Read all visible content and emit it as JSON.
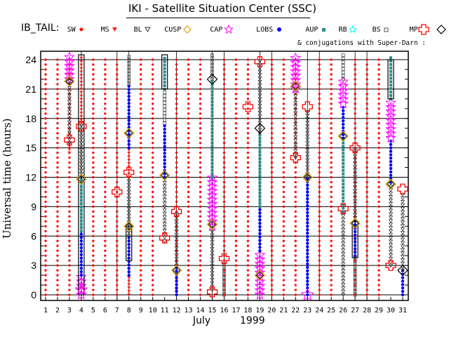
{
  "title": "IKI - Satellite Situation Center (SSC)",
  "legend": {
    "label": "IB_TAIL:",
    "items": [
      {
        "code": "SW",
        "name": "SW",
        "color": "#ff0000",
        "marker": "dot-red"
      },
      {
        "code": "MS",
        "name": "MS",
        "color": "#ff2020",
        "marker": "triangle-down"
      },
      {
        "code": "BL",
        "name": "BL",
        "color": "#303030",
        "marker": "triangle-down-open"
      },
      {
        "code": "CUSP",
        "name": "CUSP",
        "color": "#e0a000",
        "marker": "diamond-yellow"
      },
      {
        "code": "CAP",
        "name": "CAP",
        "color": "#ff00ff",
        "marker": "star-magenta"
      },
      {
        "code": "LOBS",
        "name": "LOBS",
        "color": "#0000ff",
        "marker": "dot-blue"
      },
      {
        "code": "AUP",
        "name": "AUP",
        "color": "#2e8b8b",
        "marker": "square-teal"
      },
      {
        "code": "RB",
        "name": "RB",
        "color": "#00ffff",
        "marker": "star-cyan"
      },
      {
        "code": "BS",
        "name": "BS",
        "color": "#505050",
        "marker": "square-open"
      },
      {
        "code": "MP",
        "name": "MP",
        "color": "#ff0000",
        "marker": "cross-red"
      }
    ],
    "conj_marker": "diamond-open",
    "conj_note": "& conjugations with Super-Darn :"
  },
  "chart_data": {
    "type": "scatter",
    "title": "IKI - Satellite Situation Center (SSC)",
    "xlabel_month": "July",
    "xlabel_year": "1999",
    "ylabel": "Universal time (hours)",
    "xlim": [
      1,
      31
    ],
    "ylim": [
      0,
      24
    ],
    "x_ticks": [
      1,
      2,
      3,
      4,
      5,
      6,
      7,
      8,
      9,
      10,
      11,
      12,
      13,
      14,
      15,
      16,
      17,
      18,
      19,
      20,
      21,
      22,
      23,
      24,
      25,
      26,
      27,
      28,
      29,
      30,
      31
    ],
    "y_ticks": [
      0,
      3,
      6,
      9,
      12,
      15,
      18,
      21,
      24
    ],
    "grid": true,
    "solar_wind_days": [
      1,
      2,
      3,
      5,
      6,
      7,
      9,
      10,
      12,
      13,
      14,
      16,
      17,
      18,
      20,
      21,
      22,
      24,
      25,
      27,
      28,
      29
    ],
    "columns": [
      {
        "day": 3,
        "segments": [
          [
            14.5,
            15.5,
            "MS"
          ],
          [
            15.5,
            22.0,
            "BL"
          ],
          [
            22.0,
            24.5,
            "CAP"
          ]
        ]
      },
      {
        "day": 4,
        "segments": [
          [
            0.0,
            2.0,
            "CAP"
          ],
          [
            2.0,
            6.5,
            "LOBS"
          ],
          [
            6.5,
            12.0,
            "AUP"
          ],
          [
            12.0,
            17.5,
            "BL"
          ],
          [
            17.5,
            24.5,
            "MS"
          ]
        ]
      },
      {
        "day": 8,
        "segments": [
          [
            0.0,
            2.0,
            "MS"
          ],
          [
            2.0,
            6.0,
            "LOBS"
          ],
          [
            6.0,
            12.0,
            "BL"
          ],
          [
            12.0,
            15.0,
            "MS"
          ],
          [
            15.0,
            21.5,
            "LOBS"
          ],
          [
            21.5,
            24.5,
            "BS"
          ]
        ]
      },
      {
        "day": 11,
        "segments": [
          [
            5.5,
            12.0,
            "BL"
          ],
          [
            12.0,
            17.5,
            "LOBS"
          ],
          [
            17.5,
            21.0,
            "BS"
          ],
          [
            21.0,
            24.5,
            "AUP"
          ]
        ]
      },
      {
        "day": 12,
        "segments": [
          [
            0.0,
            3.0,
            "LOBS"
          ],
          [
            3.0,
            8.5,
            "BL"
          ]
        ]
      },
      {
        "day": 15,
        "segments": [
          [
            0.5,
            7.0,
            "BL"
          ],
          [
            7.0,
            12.0,
            "CAP"
          ],
          [
            12.0,
            22.0,
            "AUP"
          ],
          [
            22.0,
            24.5,
            "BS"
          ]
        ]
      },
      {
        "day": 16,
        "segments": [
          [
            0.0,
            3.5,
            "BS"
          ]
        ]
      },
      {
        "day": 19,
        "segments": [
          [
            0.0,
            4.5,
            "CAP"
          ],
          [
            4.5,
            9.0,
            "LOBS"
          ],
          [
            9.0,
            16.5,
            "AUP"
          ],
          [
            16.5,
            24.0,
            "BL"
          ]
        ]
      },
      {
        "day": 22,
        "segments": [
          [
            14.0,
            21.0,
            "BL"
          ],
          [
            21.0,
            24.5,
            "CAP"
          ]
        ]
      },
      {
        "day": 23,
        "segments": [
          [
            0.0,
            3.5,
            "LOBS"
          ],
          [
            3.5,
            12.0,
            "LOBS"
          ],
          [
            12.0,
            19.0,
            "BL"
          ]
        ]
      },
      {
        "day": 26,
        "segments": [
          [
            0.0,
            8.5,
            "BL"
          ],
          [
            8.5,
            16.0,
            "AUP"
          ],
          [
            16.0,
            19.5,
            "LOBS"
          ],
          [
            19.5,
            22.0,
            "CAP"
          ],
          [
            22.0,
            24.5,
            "BS"
          ]
        ]
      },
      {
        "day": 27,
        "segments": [
          [
            0.0,
            4.0,
            "BS"
          ],
          [
            4.0,
            7.5,
            "LOBS"
          ],
          [
            7.5,
            15.0,
            "BL"
          ]
        ]
      },
      {
        "day": 30,
        "segments": [
          [
            3.0,
            11.5,
            "BL"
          ],
          [
            11.5,
            16.0,
            "LOBS"
          ],
          [
            16.0,
            20.0,
            "CAP"
          ],
          [
            20.0,
            24.5,
            "AUP"
          ]
        ]
      },
      {
        "day": 31,
        "segments": [
          [
            0.0,
            2.5,
            "LOBS"
          ],
          [
            2.5,
            10.5,
            "BL"
          ]
        ]
      }
    ],
    "markers": [
      {
        "day": 3,
        "t": 21.8,
        "type": "CUSP"
      },
      {
        "day": 3,
        "t": 15.8,
        "type": "MP"
      },
      {
        "day": 4,
        "t": 11.8,
        "type": "CUSP"
      },
      {
        "day": 4,
        "t": 17.2,
        "type": "MP"
      },
      {
        "day": 4,
        "t": 0.5,
        "type": "CAP"
      },
      {
        "day": 8,
        "t": 7.0,
        "type": "CUSP"
      },
      {
        "day": 8,
        "t": 12.5,
        "type": "MP"
      },
      {
        "day": 8,
        "t": 16.5,
        "type": "CUSP"
      },
      {
        "day": 7,
        "t": 10.5,
        "type": "MP"
      },
      {
        "day": 11,
        "t": 12.2,
        "type": "CUSP"
      },
      {
        "day": 11,
        "t": 5.8,
        "type": "MP"
      },
      {
        "day": 12,
        "t": 2.5,
        "type": "CUSP"
      },
      {
        "day": 12,
        "t": 8.5,
        "type": "MP"
      },
      {
        "day": 15,
        "t": 7.2,
        "type": "CUSP"
      },
      {
        "day": 15,
        "t": 22.0,
        "type": "CONJ"
      },
      {
        "day": 15,
        "t": 0.3,
        "type": "MP"
      },
      {
        "day": 16,
        "t": 3.7,
        "type": "MP"
      },
      {
        "day": 18,
        "t": 19.2,
        "type": "MP"
      },
      {
        "day": 19,
        "t": 2.0,
        "type": "CUSP"
      },
      {
        "day": 19,
        "t": 17.0,
        "type": "CONJ"
      },
      {
        "day": 19,
        "t": 23.8,
        "type": "MP"
      },
      {
        "day": 22,
        "t": 21.3,
        "type": "CUSP"
      },
      {
        "day": 22,
        "t": 14.0,
        "type": "MP"
      },
      {
        "day": 23,
        "t": 12.0,
        "type": "CUSP"
      },
      {
        "day": 23,
        "t": 19.2,
        "type": "MP"
      },
      {
        "day": 23,
        "t": 0.0,
        "type": "CAP"
      },
      {
        "day": 26,
        "t": 16.2,
        "type": "CUSP"
      },
      {
        "day": 26,
        "t": 8.8,
        "type": "MP"
      },
      {
        "day": 27,
        "t": 7.3,
        "type": "CUSP"
      },
      {
        "day": 27,
        "t": 15.0,
        "type": "MP"
      },
      {
        "day": 30,
        "t": 11.3,
        "type": "CUSP"
      },
      {
        "day": 30,
        "t": 3.0,
        "type": "MP"
      },
      {
        "day": 31,
        "t": 2.5,
        "type": "CONJ"
      },
      {
        "day": 31,
        "t": 10.8,
        "type": "MP"
      }
    ],
    "conj_boxes": [
      {
        "day": 4,
        "t0": 0,
        "t1": 24.5
      },
      {
        "day": 8,
        "t0": 3.5,
        "t1": 7.0
      },
      {
        "day": 11,
        "t0": 21.0,
        "t1": 24.5
      },
      {
        "day": 27,
        "t0": 3.8,
        "t1": 7.5
      },
      {
        "day": 30,
        "t0": 20.0,
        "t1": 24.0
      }
    ]
  }
}
